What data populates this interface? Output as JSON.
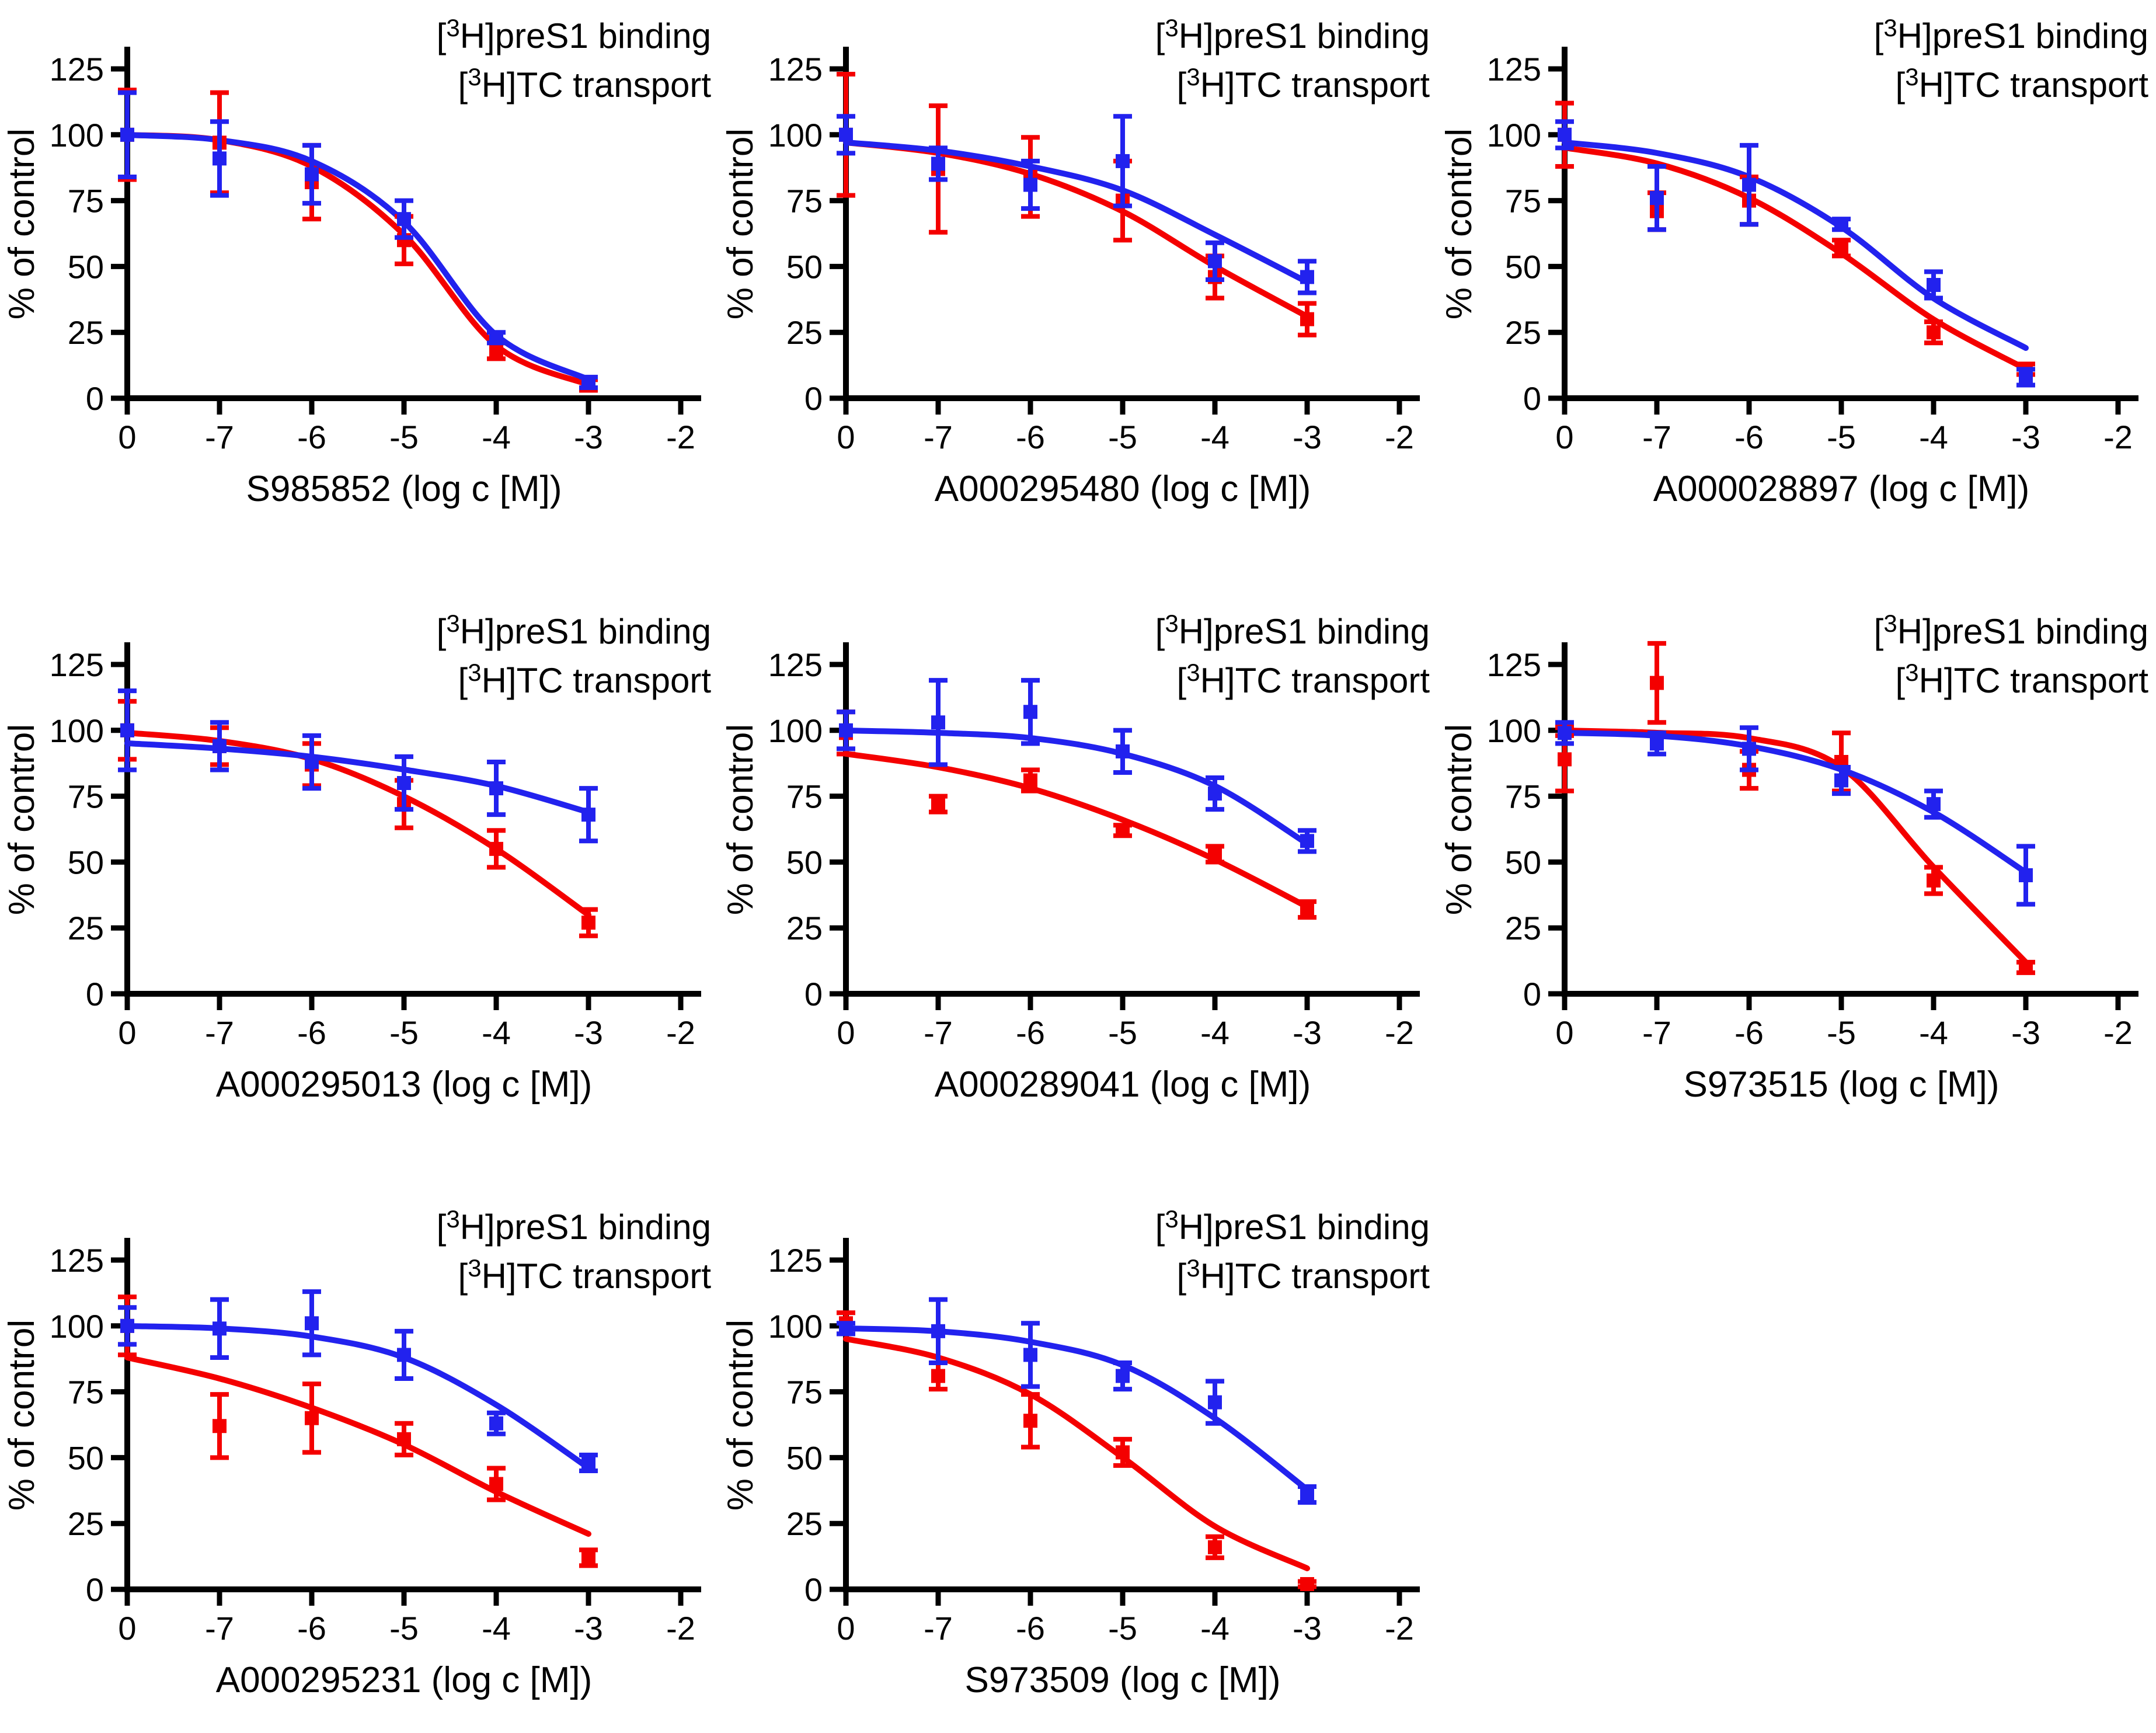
{
  "figure": {
    "background": "#FFFFFF"
  },
  "colors": {
    "red": "#F40000",
    "blue": "#2222EE",
    "axis": "#000000"
  },
  "legend": [
    {
      "pre": "[",
      "sup": "3",
      "post": "H]preS1 binding",
      "series": "red"
    },
    {
      "pre": "[",
      "sup": "3",
      "post": "H]TC transport",
      "series": "blue"
    }
  ],
  "axis": {
    "ylabel": "% of control",
    "y_ticks": [
      0,
      25,
      50,
      75,
      100,
      125
    ],
    "x_ticklabels": [
      "0",
      "-7",
      "-6",
      "-5",
      "-4",
      "-3",
      "-2"
    ],
    "ylim": [
      0,
      130
    ]
  },
  "chart_data": [
    {
      "type": "scatter",
      "compound": "S985852",
      "xlabel": "S985852 (log c [M])",
      "ylabel": "% of control",
      "x_ticklabels": [
        "0",
        "-7",
        "-6",
        "-5",
        "-4",
        "-3",
        "-2"
      ],
      "y_ticks": [
        0,
        25,
        50,
        75,
        100,
        125
      ],
      "series": [
        {
          "name": "[3H]preS1 binding",
          "color_key": "red",
          "points": [
            [
              0,
              100,
              17
            ],
            [
              1,
              97,
              19
            ],
            [
              2,
              82,
              14
            ],
            [
              3,
              60,
              9
            ],
            [
              4,
              18,
              3
            ],
            [
              5,
              5,
              2
            ]
          ],
          "curve": [
            100,
            98,
            88,
            62,
            20,
            5
          ]
        },
        {
          "name": "[3H]TC transport",
          "color_key": "blue",
          "points": [
            [
              0,
              100,
              16
            ],
            [
              1,
              91,
              14
            ],
            [
              2,
              85,
              11
            ],
            [
              3,
              68,
              7
            ],
            [
              4,
              23,
              2
            ],
            [
              5,
              6,
              2
            ]
          ],
          "curve": [
            100,
            98,
            90,
            67,
            24,
            7
          ]
        }
      ]
    },
    {
      "type": "scatter",
      "compound": "A000295480",
      "xlabel": "A000295480 (log c [M])",
      "ylabel": "% of control",
      "x_ticklabels": [
        "0",
        "-7",
        "-6",
        "-5",
        "-4",
        "-3",
        "-2"
      ],
      "y_ticks": [
        0,
        25,
        50,
        75,
        100,
        125
      ],
      "series": [
        {
          "name": "[3H]preS1 binding",
          "color_key": "red",
          "points": [
            [
              0,
              100,
              23
            ],
            [
              1,
              87,
              24
            ],
            [
              2,
              84,
              15
            ],
            [
              3,
              75,
              15
            ],
            [
              4,
              46,
              8
            ],
            [
              5,
              30,
              6
            ]
          ],
          "curve": [
            97,
            93,
            85,
            71,
            50,
            31
          ]
        },
        {
          "name": "[3H]TC transport",
          "color_key": "blue",
          "points": [
            [
              0,
              100,
              7
            ],
            [
              1,
              89,
              6
            ],
            [
              2,
              81,
              9
            ],
            [
              3,
              90,
              17
            ],
            [
              4,
              52,
              7
            ],
            [
              5,
              46,
              6
            ]
          ],
          "curve": [
            97,
            94,
            88,
            79,
            62,
            44
          ]
        }
      ]
    },
    {
      "type": "scatter",
      "compound": "A000028897",
      "xlabel": "A000028897 (log c [M])",
      "ylabel": "% of control",
      "x_ticklabels": [
        "0",
        "-7",
        "-6",
        "-5",
        "-4",
        "-3",
        "-2"
      ],
      "y_ticks": [
        0,
        25,
        50,
        75,
        100,
        125
      ],
      "series": [
        {
          "name": "[3H]preS1 binding",
          "color_key": "red",
          "points": [
            [
              0,
              100,
              12
            ],
            [
              1,
              71,
              7
            ],
            [
              2,
              75,
              9
            ],
            [
              3,
              57,
              3
            ],
            [
              4,
              25,
              4
            ],
            [
              5,
              11,
              2
            ]
          ],
          "curve": [
            95,
            89,
            76,
            55,
            30,
            11
          ]
        },
        {
          "name": "[3H]TC transport",
          "color_key": "blue",
          "points": [
            [
              0,
              100,
              5
            ],
            [
              1,
              76,
              12
            ],
            [
              2,
              81,
              15
            ],
            [
              3,
              66,
              2
            ],
            [
              4,
              43,
              5
            ],
            [
              5,
              8,
              3
            ]
          ],
          "curve": [
            97,
            93,
            84,
            65,
            38,
            19
          ]
        }
      ]
    },
    {
      "type": "scatter",
      "compound": "A000295013",
      "xlabel": "A000295013 (log c [M])",
      "ylabel": "% of control",
      "x_ticklabels": [
        "0",
        "-7",
        "-6",
        "-5",
        "-4",
        "-3",
        "-2"
      ],
      "y_ticks": [
        0,
        25,
        50,
        75,
        100,
        125
      ],
      "series": [
        {
          "name": "[3H]preS1 binding",
          "color_key": "red",
          "points": [
            [
              0,
              100,
              11
            ],
            [
              1,
              94,
              7
            ],
            [
              2,
              87,
              8
            ],
            [
              3,
              72,
              9
            ],
            [
              4,
              55,
              7
            ],
            [
              5,
              27,
              5
            ]
          ],
          "curve": [
            99,
            96,
            89,
            75,
            55,
            30
          ]
        },
        {
          "name": "[3H]TC transport",
          "color_key": "blue",
          "points": [
            [
              0,
              100,
              15
            ],
            [
              1,
              94,
              9
            ],
            [
              2,
              88,
              10
            ],
            [
              3,
              80,
              10
            ],
            [
              4,
              78,
              10
            ],
            [
              5,
              68,
              10
            ]
          ],
          "curve": [
            95,
            93,
            90,
            85,
            79,
            69
          ]
        }
      ]
    },
    {
      "type": "scatter",
      "compound": "A000289041",
      "xlabel": "A000289041 (log c [M])",
      "ylabel": "% of control",
      "x_ticklabels": [
        "0",
        "-7",
        "-6",
        "-5",
        "-4",
        "-3",
        "-2"
      ],
      "y_ticks": [
        0,
        25,
        50,
        75,
        100,
        125
      ],
      "series": [
        {
          "name": "[3H]preS1 binding",
          "color_key": "red",
          "points": [
            [
              0,
              99,
              8
            ],
            [
              1,
              72,
              3
            ],
            [
              2,
              81,
              4
            ],
            [
              3,
              62,
              2
            ],
            [
              4,
              53,
              3
            ],
            [
              5,
              32,
              3
            ]
          ],
          "curve": [
            91,
            86,
            78,
            66,
            51,
            33
          ]
        },
        {
          "name": "[3H]TC transport",
          "color_key": "blue",
          "points": [
            [
              0,
              100,
              7
            ],
            [
              1,
              103,
              16
            ],
            [
              2,
              107,
              12
            ],
            [
              3,
              92,
              8
            ],
            [
              4,
              76,
              6
            ],
            [
              5,
              58,
              4
            ]
          ],
          "curve": [
            100,
            99,
            97,
            91,
            79,
            57
          ]
        }
      ]
    },
    {
      "type": "scatter",
      "compound": "S973515",
      "xlabel": "S973515 (log c [M])",
      "ylabel": "% of control",
      "x_ticklabels": [
        "0",
        "-7",
        "-6",
        "-5",
        "-4",
        "-3",
        "-2"
      ],
      "y_ticks": [
        0,
        25,
        50,
        75,
        100,
        125
      ],
      "series": [
        {
          "name": "[3H]preS1 binding",
          "color_key": "red",
          "points": [
            [
              0,
              89,
              12
            ],
            [
              0,
              100,
              2
            ],
            [
              1,
              118,
              15
            ],
            [
              2,
              85,
              7
            ],
            [
              3,
              88,
              11
            ],
            [
              4,
              43,
              5
            ],
            [
              5,
              10,
              2
            ]
          ],
          "curve": [
            100,
            99,
            97,
            86,
            48,
            12
          ]
        },
        {
          "name": "[3H]TC transport",
          "color_key": "blue",
          "points": [
            [
              0,
              99,
              4
            ],
            [
              1,
              95,
              4
            ],
            [
              2,
              93,
              8
            ],
            [
              3,
              81,
              5
            ],
            [
              4,
              72,
              5
            ],
            [
              5,
              45,
              11
            ]
          ],
          "curve": [
            99,
            98,
            94,
            85,
            69,
            46
          ]
        }
      ]
    },
    {
      "type": "scatter",
      "compound": "A000295231",
      "xlabel": "A000295231 (log c [M])",
      "ylabel": "% of control",
      "x_ticklabels": [
        "0",
        "-7",
        "-6",
        "-5",
        "-4",
        "-3",
        "-2"
      ],
      "y_ticks": [
        0,
        25,
        50,
        75,
        100,
        125
      ],
      "series": [
        {
          "name": "[3H]preS1 binding",
          "color_key": "red",
          "points": [
            [
              0,
              100,
              11
            ],
            [
              1,
              62,
              12
            ],
            [
              2,
              65,
              13
            ],
            [
              3,
              57,
              6
            ],
            [
              4,
              40,
              6
            ],
            [
              5,
              12,
              3
            ]
          ],
          "curve": [
            88,
            80,
            69,
            55,
            37,
            21
          ]
        },
        {
          "name": "[3H]TC transport",
          "color_key": "blue",
          "points": [
            [
              0,
              100,
              7
            ],
            [
              1,
              99,
              11
            ],
            [
              2,
              101,
              12
            ],
            [
              3,
              89,
              9
            ],
            [
              4,
              63,
              4
            ],
            [
              5,
              48,
              3
            ]
          ],
          "curve": [
            100,
            99,
            96,
            88,
            70,
            46
          ]
        }
      ]
    },
    {
      "type": "scatter",
      "compound": "S973509",
      "xlabel": "S973509 (log c [M])",
      "ylabel": "% of control",
      "x_ticklabels": [
        "0",
        "-7",
        "-6",
        "-5",
        "-4",
        "-3",
        "-2"
      ],
      "y_ticks": [
        0,
        25,
        50,
        75,
        100,
        125
      ],
      "series": [
        {
          "name": "[3H]preS1 binding",
          "color_key": "red",
          "points": [
            [
              0,
              101,
              4
            ],
            [
              1,
              81,
              5
            ],
            [
              2,
              64,
              10
            ],
            [
              3,
              52,
              5
            ],
            [
              4,
              16,
              4
            ],
            [
              5,
              2,
              1
            ]
          ],
          "curve": [
            95,
            88,
            74,
            50,
            24,
            8
          ]
        },
        {
          "name": "[3H]TC transport",
          "color_key": "blue",
          "points": [
            [
              0,
              99,
              2
            ],
            [
              1,
              98,
              12
            ],
            [
              2,
              89,
              12
            ],
            [
              3,
              81,
              5
            ],
            [
              4,
              71,
              8
            ],
            [
              5,
              36,
              3
            ]
          ],
          "curve": [
            99,
            98,
            94,
            85,
            65,
            38
          ]
        }
      ]
    }
  ],
  "grid": {
    "cols": [
      0,
      1231,
      2462
    ],
    "rows": [
      10,
      1030,
      2050
    ],
    "cells": [
      [
        0,
        0
      ],
      [
        0,
        1
      ],
      [
        0,
        2
      ],
      [
        1,
        0
      ],
      [
        1,
        1
      ],
      [
        1,
        2
      ],
      [
        2,
        0
      ],
      [
        2,
        1
      ]
    ]
  }
}
